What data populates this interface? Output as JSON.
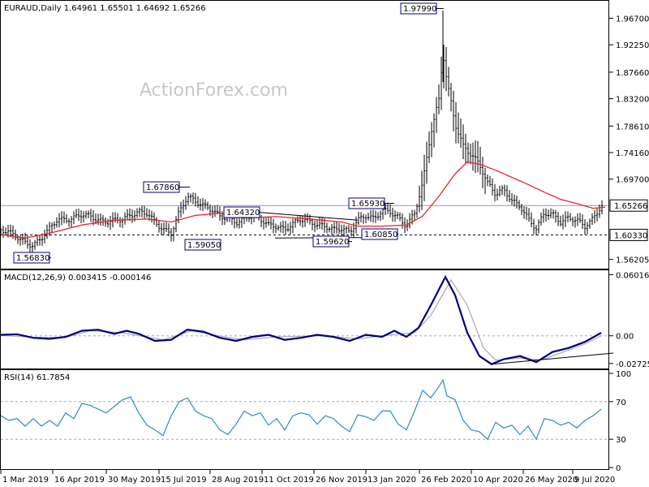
{
  "watermark": "ActionForex.com",
  "colors": {
    "price": "#000000",
    "sma": "#e8272b",
    "macd": "#000080",
    "signal": "#b0b0b0",
    "rsi": "#2c8ad6",
    "level": "#000000",
    "tag_border": "#000080"
  },
  "chart_data": [
    {
      "type": "ohlc",
      "title": "EURAUD,Daily  1.64961 1.65501 1.64692 1.65266",
      "ylim": [
        1.548,
        1.995
      ],
      "yticks": [
        "1.96700",
        "1.92250",
        "1.87660",
        "1.83200",
        "1.78610",
        "1.74160",
        "1.69700",
        "1.65266",
        "1.60330",
        "1.56205"
      ],
      "ytick_values": [
        1.967,
        1.9225,
        1.8766,
        1.832,
        1.7861,
        1.7416,
        1.697,
        1.65266,
        1.6033,
        1.56205
      ],
      "current_price": "1.65266",
      "support_level": "1.60330",
      "x_labels": [
        "1 Mar 2019",
        "16 Apr 2019",
        "30 May 2019",
        "15 Jul 2019",
        "28 Aug 2019",
        "11 Oct 2019",
        "26 Nov 2019",
        "13 Jan 2020",
        "26 Feb 2020",
        "10 Apr 2020",
        "26 May 2020",
        "9 Jul 2020"
      ],
      "close_path": [
        [
          0,
          1.612
        ],
        [
          10,
          1.608
        ],
        [
          20,
          1.6
        ],
        [
          30,
          1.59
        ],
        [
          40,
          1.585
        ],
        [
          50,
          1.598
        ],
        [
          60,
          1.614
        ],
        [
          70,
          1.63
        ],
        [
          80,
          1.628
        ],
        [
          90,
          1.632
        ],
        [
          100,
          1.638
        ],
        [
          110,
          1.635
        ],
        [
          120,
          1.628
        ],
        [
          130,
          1.625
        ],
        [
          140,
          1.628
        ],
        [
          150,
          1.63
        ],
        [
          160,
          1.636
        ],
        [
          170,
          1.642
        ],
        [
          180,
          1.64
        ],
        [
          190,
          1.625
        ],
        [
          200,
          1.612
        ],
        [
          210,
          1.606
        ],
        [
          220,
          1.642
        ],
        [
          230,
          1.668
        ],
        [
          240,
          1.66
        ],
        [
          250,
          1.652
        ],
        [
          260,
          1.646
        ],
        [
          270,
          1.634
        ],
        [
          280,
          1.632
        ],
        [
          290,
          1.624
        ],
        [
          300,
          1.63
        ],
        [
          310,
          1.638
        ],
        [
          320,
          1.63
        ],
        [
          330,
          1.62
        ],
        [
          340,
          1.618
        ],
        [
          350,
          1.612
        ],
        [
          360,
          1.622
        ],
        [
          370,
          1.63
        ],
        [
          380,
          1.626
        ],
        [
          390,
          1.62
        ],
        [
          400,
          1.618
        ],
        [
          410,
          1.612
        ],
        [
          420,
          1.614
        ],
        [
          430,
          1.608
        ],
        [
          440,
          1.628
        ],
        [
          450,
          1.636
        ],
        [
          460,
          1.63
        ],
        [
          470,
          1.645
        ],
        [
          480,
          1.642
        ],
        [
          490,
          1.632
        ],
        [
          500,
          1.618
        ],
        [
          510,
          1.64
        ],
        [
          520,
          1.69
        ],
        [
          530,
          1.775
        ],
        [
          540,
          1.83
        ],
        [
          545,
          1.91
        ],
        [
          550,
          1.86
        ],
        [
          560,
          1.79
        ],
        [
          570,
          1.752
        ],
        [
          580,
          1.738
        ],
        [
          590,
          1.722
        ],
        [
          600,
          1.69
        ],
        [
          610,
          1.672
        ],
        [
          620,
          1.68
        ],
        [
          630,
          1.66
        ],
        [
          640,
          1.652
        ],
        [
          650,
          1.63
        ],
        [
          660,
          1.614
        ],
        [
          670,
          1.64
        ],
        [
          680,
          1.638
        ],
        [
          690,
          1.625
        ],
        [
          700,
          1.632
        ],
        [
          710,
          1.628
        ],
        [
          720,
          1.618
        ],
        [
          730,
          1.63
        ],
        [
          740,
          1.652
        ]
      ],
      "sma_path": [
        [
          0,
          1.604
        ],
        [
          30,
          1.598
        ],
        [
          60,
          1.606
        ],
        [
          100,
          1.62
        ],
        [
          140,
          1.628
        ],
        [
          180,
          1.63
        ],
        [
          210,
          1.625
        ],
        [
          240,
          1.636
        ],
        [
          270,
          1.64
        ],
        [
          300,
          1.632
        ],
        [
          340,
          1.634
        ],
        [
          380,
          1.63
        ],
        [
          420,
          1.625
        ],
        [
          440,
          1.618
        ],
        [
          470,
          1.618
        ],
        [
          500,
          1.62
        ],
        [
          520,
          1.635
        ],
        [
          540,
          1.668
        ],
        [
          560,
          1.706
        ],
        [
          575,
          1.726
        ],
        [
          590,
          1.722
        ],
        [
          610,
          1.712
        ],
        [
          630,
          1.7
        ],
        [
          650,
          1.688
        ],
        [
          670,
          1.675
        ],
        [
          690,
          1.663
        ],
        [
          710,
          1.656
        ],
        [
          730,
          1.648
        ],
        [
          745,
          1.65
        ]
      ],
      "annotations": [
        {
          "text": "1.97990",
          "value": 1.9799
        },
        {
          "text": "1.67860",
          "value": 1.6786
        },
        {
          "text": "1.64320",
          "value": 1.6432
        },
        {
          "text": "1.65930",
          "value": 1.6593
        },
        {
          "text": "1.59050",
          "value": 1.5905
        },
        {
          "text": "1.59620",
          "value": 1.5962
        },
        {
          "text": "1.60850",
          "value": 1.6085
        },
        {
          "text": "1.56830",
          "value": 1.5683
        }
      ]
    },
    {
      "type": "line",
      "title": "MACD(12,26,9) 0.003415 -0.000146",
      "ylim": [
        -0.0314,
        0.0637
      ],
      "yticks": [
        "0.060165",
        "0.00",
        "-0.02725"
      ],
      "ytick_values": [
        0.060165,
        0,
        -0.02725
      ],
      "macd": [
        [
          0,
          0.001
        ],
        [
          20,
          0.0015
        ],
        [
          40,
          -0.002
        ],
        [
          60,
          -0.003
        ],
        [
          80,
          -0.001
        ],
        [
          100,
          0.005
        ],
        [
          120,
          0.006
        ],
        [
          140,
          0.002
        ],
        [
          155,
          0.005
        ],
        [
          170,
          0.002
        ],
        [
          190,
          -0.005
        ],
        [
          210,
          -0.004
        ],
        [
          230,
          0.006
        ],
        [
          250,
          0.004
        ],
        [
          270,
          -0.002
        ],
        [
          290,
          -0.005
        ],
        [
          310,
          -0.001
        ],
        [
          330,
          0.001
        ],
        [
          350,
          -0.004
        ],
        [
          370,
          -0.002
        ],
        [
          390,
          0.001
        ],
        [
          410,
          -0.001
        ],
        [
          430,
          -0.005
        ],
        [
          450,
          0.001
        ],
        [
          470,
          -0.001
        ],
        [
          485,
          0.005
        ],
        [
          500,
          -0.001
        ],
        [
          515,
          0.008
        ],
        [
          530,
          0.03
        ],
        [
          548,
          0.058
        ],
        [
          560,
          0.04
        ],
        [
          575,
          0.003
        ],
        [
          590,
          -0.02
        ],
        [
          605,
          -0.028
        ],
        [
          620,
          -0.023
        ],
        [
          640,
          -0.02
        ],
        [
          660,
          -0.026
        ],
        [
          680,
          -0.016
        ],
        [
          700,
          -0.012
        ],
        [
          720,
          -0.006
        ],
        [
          740,
          0.003
        ]
      ],
      "signal": [
        [
          0,
          0.0005
        ],
        [
          40,
          -0.0015
        ],
        [
          80,
          -0.0015
        ],
        [
          110,
          0.005
        ],
        [
          150,
          0.003
        ],
        [
          200,
          -0.004
        ],
        [
          235,
          0.005
        ],
        [
          275,
          -0.001
        ],
        [
          300,
          -0.004
        ],
        [
          340,
          -0.001
        ],
        [
          400,
          0.0
        ],
        [
          440,
          -0.003
        ],
        [
          480,
          0.001
        ],
        [
          510,
          0.003
        ],
        [
          530,
          0.02
        ],
        [
          555,
          0.055
        ],
        [
          575,
          0.03
        ],
        [
          595,
          -0.012
        ],
        [
          610,
          -0.024
        ],
        [
          640,
          -0.022
        ],
        [
          665,
          -0.024
        ],
        [
          690,
          -0.017
        ],
        [
          720,
          -0.008
        ],
        [
          740,
          0.0
        ]
      ],
      "trendline": [
        [
          605,
          -0.028
        ],
        [
          755,
          -0.017
        ]
      ]
    },
    {
      "type": "line",
      "title": "RSI(14) 61.7854",
      "ylim": [
        0,
        100
      ],
      "yticks": [
        "100",
        "70",
        "30",
        "0"
      ],
      "ytick_values": [
        100,
        70,
        30,
        0
      ],
      "rsi": [
        [
          0,
          55
        ],
        [
          10,
          50
        ],
        [
          20,
          52
        ],
        [
          30,
          44
        ],
        [
          40,
          52
        ],
        [
          50,
          44
        ],
        [
          60,
          50
        ],
        [
          70,
          44
        ],
        [
          80,
          58
        ],
        [
          90,
          52
        ],
        [
          100,
          68
        ],
        [
          110,
          66
        ],
        [
          120,
          62
        ],
        [
          130,
          58
        ],
        [
          140,
          65
        ],
        [
          150,
          72
        ],
        [
          160,
          75
        ],
        [
          170,
          58
        ],
        [
          180,
          45
        ],
        [
          190,
          40
        ],
        [
          200,
          34
        ],
        [
          210,
          55
        ],
        [
          220,
          70
        ],
        [
          230,
          74
        ],
        [
          240,
          60
        ],
        [
          250,
          55
        ],
        [
          260,
          52
        ],
        [
          270,
          40
        ],
        [
          280,
          35
        ],
        [
          290,
          46
        ],
        [
          300,
          60
        ],
        [
          310,
          55
        ],
        [
          320,
          58
        ],
        [
          330,
          45
        ],
        [
          340,
          52
        ],
        [
          350,
          40
        ],
        [
          360,
          55
        ],
        [
          370,
          58
        ],
        [
          380,
          56
        ],
        [
          390,
          46
        ],
        [
          400,
          55
        ],
        [
          410,
          52
        ],
        [
          420,
          44
        ],
        [
          430,
          38
        ],
        [
          440,
          56
        ],
        [
          450,
          54
        ],
        [
          460,
          50
        ],
        [
          470,
          60
        ],
        [
          480,
          60
        ],
        [
          490,
          46
        ],
        [
          500,
          40
        ],
        [
          510,
          60
        ],
        [
          520,
          82
        ],
        [
          530,
          74
        ],
        [
          540,
          86
        ],
        [
          545,
          93
        ],
        [
          550,
          76
        ],
        [
          560,
          72
        ],
        [
          570,
          50
        ],
        [
          580,
          40
        ],
        [
          590,
          38
        ],
        [
          600,
          30
        ],
        [
          610,
          48
        ],
        [
          620,
          42
        ],
        [
          630,
          45
        ],
        [
          640,
          35
        ],
        [
          650,
          44
        ],
        [
          660,
          30
        ],
        [
          670,
          52
        ],
        [
          680,
          50
        ],
        [
          690,
          45
        ],
        [
          700,
          48
        ],
        [
          710,
          42
        ],
        [
          720,
          50
        ],
        [
          730,
          55
        ],
        [
          740,
          62
        ]
      ]
    }
  ]
}
